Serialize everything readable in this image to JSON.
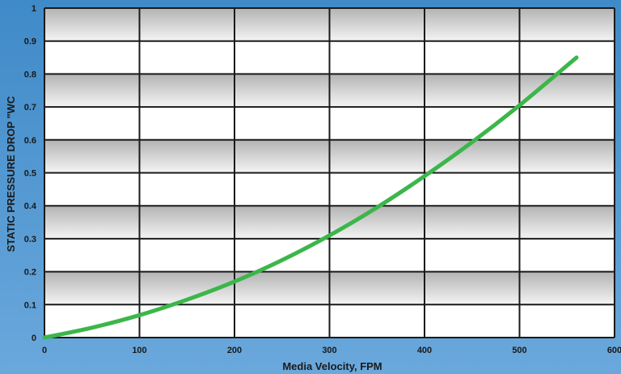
{
  "chart_data": {
    "type": "line",
    "title": "",
    "xlabel": "Media Velocity, FPM",
    "ylabel": "STATIC PRESSURE DROP \"WC",
    "xlim": [
      0,
      600
    ],
    "ylim": [
      0,
      1
    ],
    "xticks": [
      0,
      100,
      200,
      300,
      400,
      500,
      600
    ],
    "yticks": [
      0,
      0.1,
      0.2,
      0.3,
      0.4,
      0.5,
      0.6,
      0.7,
      0.8,
      0.9,
      1
    ],
    "ytick_labels": [
      "0",
      "0.1",
      "0.2",
      "0.3",
      "0.4",
      "0.5",
      "0.6",
      "0.7",
      "0.8",
      "0.9",
      "1"
    ],
    "grid": true,
    "series": [
      {
        "color": "#3cb64a",
        "x": [
          0,
          50,
          100,
          150,
          200,
          250,
          300,
          350,
          400,
          450,
          500,
          560
        ],
        "y": [
          0,
          0.03,
          0.068,
          0.115,
          0.17,
          0.235,
          0.31,
          0.395,
          0.49,
          0.593,
          0.705,
          0.85
        ]
      }
    ],
    "colors": {
      "band_dark": "#bdbdbd",
      "band_light": "#ffffff",
      "gridline": "#1a1a1a"
    }
  }
}
